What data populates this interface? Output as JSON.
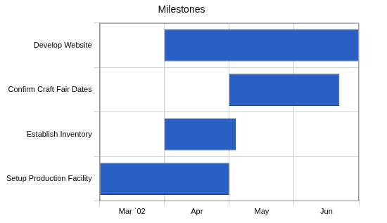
{
  "chart_data": {
    "type": "bar",
    "title": "Milestones",
    "orientation": "horizontal",
    "categories": [
      "Develop Website",
      "Confirm Craft Fair Dates",
      "Establish Inventory",
      "Setup Production Facility"
    ],
    "values": [
      [
        1,
        4
      ],
      [
        2,
        3.7
      ],
      [
        1,
        2.1
      ],
      [
        0,
        2
      ]
    ],
    "color": "#2a5fc4",
    "xlim": [
      0,
      4
    ],
    "xticks": [
      {
        "value": 0.5,
        "label": "Mar `02"
      },
      {
        "value": 1.5,
        "label": "Apr"
      },
      {
        "value": 2.5,
        "label": "May"
      },
      {
        "value": 3.5,
        "label": "Jun"
      }
    ],
    "grid": true
  }
}
